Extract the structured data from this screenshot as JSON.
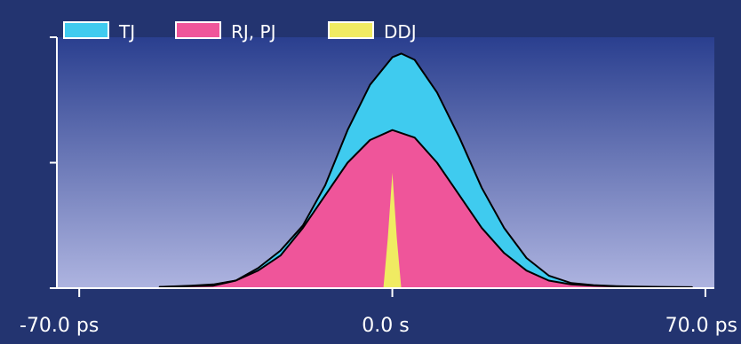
{
  "chart_data": {
    "type": "area",
    "title": "",
    "xlabel": "",
    "ylabel": "",
    "x_unit": "ps",
    "xlim": [
      -75,
      72
    ],
    "ylim": [
      0,
      1.0
    ],
    "x_ticks": [
      {
        "value": -70,
        "label": "-70.0 ps"
      },
      {
        "value": 0,
        "label": "0.0 s"
      },
      {
        "value": 70,
        "label": "70.0 ps"
      }
    ],
    "y_ticks": [
      0,
      0.5,
      1.0
    ],
    "grid": false,
    "legend_position": "top-left",
    "series": [
      {
        "name": "TJ",
        "color": "#3fcbef",
        "x": [
          -52,
          -45,
          -40,
          -35,
          -30,
          -25,
          -20,
          -15,
          -10,
          -5,
          0,
          2,
          5,
          10,
          15,
          20,
          25,
          30,
          35,
          40,
          45,
          50,
          55,
          60,
          67
        ],
        "y": [
          0.005,
          0.01,
          0.015,
          0.03,
          0.08,
          0.15,
          0.25,
          0.41,
          0.63,
          0.81,
          0.92,
          0.935,
          0.91,
          0.78,
          0.6,
          0.4,
          0.24,
          0.12,
          0.05,
          0.02,
          0.012,
          0.008,
          0.006,
          0.005,
          0.004
        ]
      },
      {
        "name": "RJ, PJ",
        "color": "#ef559a",
        "x": [
          -52,
          -45,
          -40,
          -35,
          -30,
          -25,
          -20,
          -15,
          -10,
          -5,
          0,
          5,
          10,
          15,
          20,
          25,
          30,
          35,
          40,
          45,
          50,
          55,
          60,
          67
        ],
        "y": [
          0.005,
          0.008,
          0.01,
          0.03,
          0.07,
          0.13,
          0.24,
          0.37,
          0.5,
          0.59,
          0.63,
          0.6,
          0.5,
          0.37,
          0.24,
          0.14,
          0.07,
          0.03,
          0.015,
          0.01,
          0.007,
          0.005,
          0.004,
          0.003
        ]
      },
      {
        "name": "DDJ",
        "color": "#f0eb62",
        "x": [
          -2,
          -1,
          0,
          1,
          2
        ],
        "y": [
          0,
          0.2,
          0.46,
          0.2,
          0
        ]
      }
    ]
  }
}
